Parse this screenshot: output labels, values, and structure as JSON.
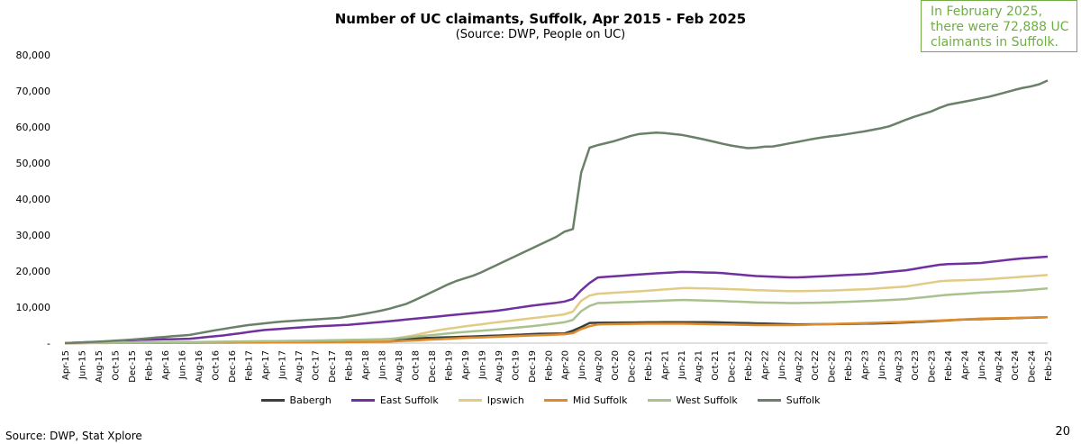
{
  "page": {
    "footer": "Source: DWP, Stat Xplore",
    "page_number": "20"
  },
  "callout": {
    "text": "In February 2025, there were 72,888 UC claimants in Suffolk."
  },
  "chart_data": {
    "type": "line",
    "title": "Number of UC claimants, Suffolk, Apr 2015 - Feb 2025",
    "subtitle": "(Source: DWP, People on UC)",
    "xlabel": "",
    "ylabel": "",
    "ylim": [
      0,
      80000
    ],
    "yticks": [
      0,
      10000,
      20000,
      30000,
      40000,
      50000,
      60000,
      70000,
      80000
    ],
    "ytick_labels": [
      "-",
      "10,000",
      "20,000",
      "30,000",
      "40,000",
      "50,000",
      "60,000",
      "70,000",
      "80,000"
    ],
    "x_start": "Apr-15",
    "x_end": "Feb-25",
    "x_tick_labels": [
      "Apr-15",
      "Jun-15",
      "Aug-15",
      "Oct-15",
      "Dec-15",
      "Feb-16",
      "Apr-16",
      "Jun-16",
      "Aug-16",
      "Oct-16",
      "Dec-16",
      "Feb-17",
      "Apr-17",
      "Jun-17",
      "Aug-17",
      "Oct-17",
      "Dec-17",
      "Feb-18",
      "Apr-18",
      "Jun-18",
      "Aug-18",
      "Oct-18",
      "Dec-18",
      "Feb-19",
      "Apr-19",
      "Jun-19",
      "Aug-19",
      "Oct-19",
      "Dec-19",
      "Feb-20",
      "Apr-20",
      "Jun-20",
      "Aug-20",
      "Oct-20",
      "Dec-20",
      "Feb-21",
      "Apr-21",
      "Jun-21",
      "Aug-21",
      "Oct-21",
      "Dec-21",
      "Feb-22",
      "Apr-22",
      "Jun-22",
      "Aug-22",
      "Oct-22",
      "Dec-22",
      "Feb-23",
      "Apr-23",
      "Jun-23",
      "Aug-23",
      "Oct-23",
      "Dec-23",
      "Feb-24",
      "Apr-24",
      "Jun-24",
      "Aug-24",
      "Oct-24",
      "Dec-24",
      "Feb-25"
    ],
    "legend_position": "bottom",
    "grid": false,
    "series": [
      {
        "name": "Babergh",
        "color": "#3b3f3b",
        "anchors": [
          [
            0,
            0
          ],
          [
            10,
            150
          ],
          [
            20,
            280
          ],
          [
            30,
            450
          ],
          [
            38,
            700
          ],
          [
            44,
            1000
          ],
          [
            50,
            1400
          ],
          [
            56,
            1800
          ],
          [
            62,
            2200
          ],
          [
            66,
            2600
          ],
          [
            70,
            2700
          ],
          [
            72,
            4500
          ],
          [
            73,
            5600
          ],
          [
            76,
            5700
          ],
          [
            84,
            5800
          ],
          [
            90,
            5800
          ],
          [
            96,
            5500
          ],
          [
            102,
            5200
          ],
          [
            108,
            5300
          ],
          [
            114,
            5500
          ],
          [
            120,
            6000
          ],
          [
            126,
            6600
          ],
          [
            132,
            6900
          ],
          [
            137,
            7200
          ],
          [
            118,
            5800
          ]
        ]
      },
      {
        "name": "East Suffolk",
        "color": "#7030a0",
        "anchors": [
          [
            0,
            0
          ],
          [
            6,
            400
          ],
          [
            12,
            900
          ],
          [
            20,
            1200
          ],
          [
            26,
            2200
          ],
          [
            32,
            3600
          ],
          [
            40,
            4600
          ],
          [
            46,
            5100
          ],
          [
            52,
            6000
          ],
          [
            58,
            7000
          ],
          [
            64,
            8000
          ],
          [
            70,
            9000
          ],
          [
            76,
            10500
          ],
          [
            80,
            11300
          ],
          [
            82,
            11900
          ],
          [
            84,
            15500
          ],
          [
            86,
            18200
          ],
          [
            94,
            19200
          ],
          [
            100,
            19800
          ],
          [
            106,
            19500
          ],
          [
            112,
            18600
          ],
          [
            118,
            18200
          ],
          [
            124,
            18700
          ],
          [
            130,
            19200
          ],
          [
            136,
            20200
          ],
          [
            142,
            21900
          ],
          [
            148,
            22200
          ],
          [
            154,
            23400
          ],
          [
            159,
            24000
          ]
        ]
      },
      {
        "name": "Ipswich",
        "color": "#e2cc85",
        "anchors": [
          [
            0,
            0
          ],
          [
            20,
            250
          ],
          [
            40,
            550
          ],
          [
            52,
            900
          ],
          [
            56,
            2000
          ],
          [
            60,
            3500
          ],
          [
            64,
            4500
          ],
          [
            70,
            5800
          ],
          [
            76,
            7000
          ],
          [
            80,
            7800
          ],
          [
            82,
            8300
          ],
          [
            84,
            12800
          ],
          [
            86,
            13700
          ],
          [
            94,
            14500
          ],
          [
            100,
            15300
          ],
          [
            106,
            15100
          ],
          [
            112,
            14700
          ],
          [
            118,
            14400
          ],
          [
            124,
            14600
          ],
          [
            130,
            15000
          ],
          [
            136,
            15700
          ],
          [
            142,
            17300
          ],
          [
            148,
            17600
          ],
          [
            154,
            18300
          ],
          [
            159,
            18900
          ]
        ]
      },
      {
        "name": "Mid Suffolk",
        "color": "#e08b2a",
        "anchors": [
          [
            0,
            0
          ],
          [
            20,
            100
          ],
          [
            40,
            200
          ],
          [
            52,
            400
          ],
          [
            56,
            700
          ],
          [
            64,
            1400
          ],
          [
            72,
            1900
          ],
          [
            80,
            2400
          ],
          [
            82,
            2600
          ],
          [
            84,
            4300
          ],
          [
            86,
            5200
          ],
          [
            94,
            5400
          ],
          [
            100,
            5400
          ],
          [
            106,
            5200
          ],
          [
            112,
            5000
          ],
          [
            118,
            5000
          ],
          [
            124,
            5300
          ],
          [
            130,
            5600
          ],
          [
            136,
            5900
          ],
          [
            142,
            6300
          ],
          [
            148,
            6800
          ],
          [
            154,
            7000
          ],
          [
            159,
            7200
          ]
        ]
      },
      {
        "name": "West Suffolk",
        "color": "#a9c18d",
        "anchors": [
          [
            0,
            0
          ],
          [
            20,
            300
          ],
          [
            40,
            700
          ],
          [
            52,
            1100
          ],
          [
            58,
            2000
          ],
          [
            64,
            3000
          ],
          [
            70,
            3800
          ],
          [
            76,
            4800
          ],
          [
            80,
            5600
          ],
          [
            82,
            6100
          ],
          [
            84,
            9700
          ],
          [
            86,
            11100
          ],
          [
            94,
            11600
          ],
          [
            100,
            12000
          ],
          [
            106,
            11700
          ],
          [
            112,
            11300
          ],
          [
            118,
            11100
          ],
          [
            124,
            11300
          ],
          [
            130,
            11700
          ],
          [
            136,
            12200
          ],
          [
            142,
            13300
          ],
          [
            148,
            14000
          ],
          [
            154,
            14500
          ],
          [
            159,
            15200
          ]
        ]
      },
      {
        "name": "Suffolk",
        "color": "#6a8068",
        "anchors": [
          [
            0,
            0
          ],
          [
            6,
            400
          ],
          [
            12,
            1000
          ],
          [
            18,
            1800
          ],
          [
            22,
            2300
          ],
          [
            26,
            3500
          ],
          [
            32,
            5000
          ],
          [
            38,
            6000
          ],
          [
            44,
            6600
          ],
          [
            48,
            7000
          ],
          [
            52,
            8000
          ],
          [
            56,
            9200
          ],
          [
            60,
            11000
          ],
          [
            64,
            14000
          ],
          [
            68,
            17000
          ],
          [
            72,
            19000
          ],
          [
            76,
            22000
          ],
          [
            80,
            25000
          ],
          [
            84,
            28000
          ],
          [
            86,
            29500
          ],
          [
            88,
            31500
          ],
          [
            89,
            31700
          ],
          [
            90,
            44000
          ],
          [
            91,
            53000
          ],
          [
            92,
            54500
          ],
          [
            96,
            56000
          ],
          [
            100,
            58000
          ],
          [
            104,
            58500
          ],
          [
            108,
            57800
          ],
          [
            112,
            56500
          ],
          [
            116,
            55000
          ],
          [
            120,
            54000
          ],
          [
            122,
            54500
          ],
          [
            124,
            54600
          ],
          [
            128,
            55800
          ],
          [
            132,
            57000
          ],
          [
            136,
            57800
          ],
          [
            140,
            58800
          ],
          [
            144,
            60000
          ],
          [
            148,
            62500
          ],
          [
            150,
            63500
          ],
          [
            152,
            64500
          ],
          [
            154,
            66000
          ],
          [
            158,
            67200
          ],
          [
            162,
            68500
          ],
          [
            166,
            70200
          ],
          [
            168,
            71000
          ],
          [
            170,
            71500
          ],
          [
            172,
            72888
          ]
        ]
      }
    ]
  }
}
